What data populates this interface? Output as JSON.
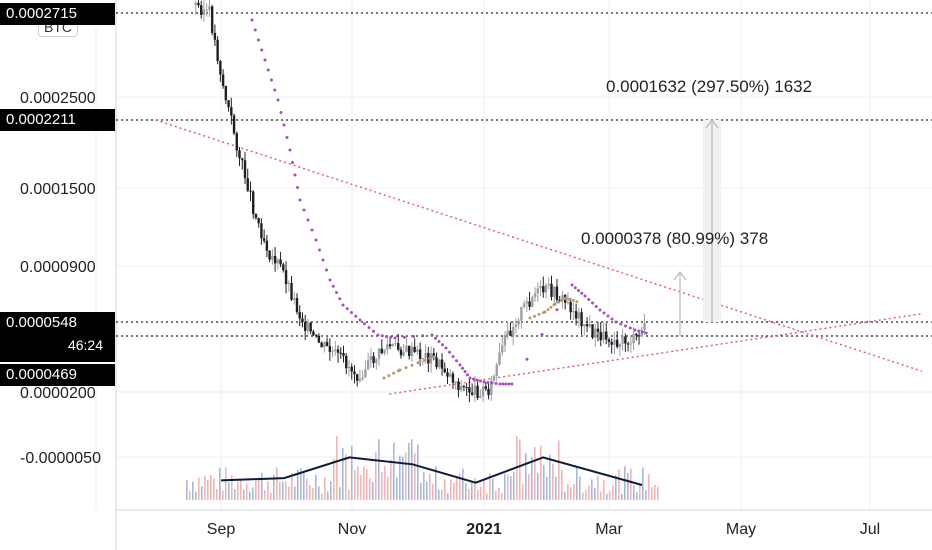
{
  "symbol": "BTC",
  "colors": {
    "up": "#9aa0a6",
    "down": "#1f1f1f",
    "sar_upper": "#a84cc4",
    "sar_lower": "#b89a6a",
    "trend": "#e5556a",
    "volume_line": "#0f1b3d",
    "vol_up": "#a8b8d8",
    "vol_down": "#f0b5b5",
    "target_arrow": "#b5b5b5"
  },
  "price_labels": {
    "top": "0.0002715",
    "resistance": "0.0002211",
    "current": "0.0000548",
    "countdown": "46:24",
    "support": "0.0000469"
  },
  "annotations": {
    "target_small": "0.0000378 (80.99%) 378",
    "target_large": "0.0001632 (297.50%) 1632"
  },
  "chart_data": {
    "type": "candlestick",
    "title": "",
    "ylabel": "",
    "xlabel": "",
    "y_ticks": [
      "0.0002500",
      "0.0001500",
      "0.0000900",
      "0.0000200",
      "-0.0000050"
    ],
    "x_ticks": [
      "Sep",
      "Nov",
      "2021",
      "Mar",
      "May",
      "Jul"
    ],
    "y_scale": "log-like",
    "grid": true,
    "price_path": [
      [
        "2020-08-20",
        0.00029
      ],
      [
        "2020-08-27",
        0.00027
      ],
      [
        "2020-09-03",
        0.00025
      ],
      [
        "2020-09-10",
        0.00018
      ],
      [
        "2020-09-17",
        0.00013
      ],
      [
        "2020-09-24",
        0.0001
      ],
      [
        "2020-10-01",
        8.5e-05
      ],
      [
        "2020-10-08",
        6e-05
      ],
      [
        "2020-10-15",
        4.5e-05
      ],
      [
        "2020-10-22",
        4e-05
      ],
      [
        "2020-10-29",
        3.5e-05
      ],
      [
        "2020-11-05",
        2.8e-05
      ],
      [
        "2020-11-12",
        3.5e-05
      ],
      [
        "2020-11-19",
        4.2e-05
      ],
      [
        "2020-11-26",
        4e-05
      ],
      [
        "2020-12-03",
        3.8e-05
      ],
      [
        "2020-12-10",
        3.6e-05
      ],
      [
        "2020-12-17",
        3e-05
      ],
      [
        "2020-12-24",
        2.2e-05
      ],
      [
        "2020-12-31",
        2e-05
      ],
      [
        "2021-01-07",
        2.2e-05
      ],
      [
        "2021-01-14",
        4.5e-05
      ],
      [
        "2021-01-21",
        6e-05
      ],
      [
        "2021-01-28",
        7.2e-05
      ],
      [
        "2021-02-04",
        7.5e-05
      ],
      [
        "2021-02-11",
        6.8e-05
      ],
      [
        "2021-02-18",
        5.8e-05
      ],
      [
        "2021-02-25",
        4.8e-05
      ],
      [
        "2021-03-04",
        4.6e-05
      ],
      [
        "2021-03-11",
        4.4e-05
      ],
      [
        "2021-03-18",
        4.5e-05
      ],
      [
        "2021-03-22",
        5.48e-05
      ]
    ],
    "volume_path": [
      [
        "2020-09-01",
        0.6
      ],
      [
        "2020-10-01",
        0.7
      ],
      [
        "2020-11-01",
        1.6
      ],
      [
        "2020-12-01",
        1.3
      ],
      [
        "2020-12-31",
        0.5
      ],
      [
        "2021-02-01",
        1.6
      ],
      [
        "2021-03-20",
        0.4
      ]
    ],
    "trendlines": [
      {
        "name": "",
        "from": [
          "2020-08-01",
          0.0002211
        ],
        "to": [
          "2021-07-31",
          3e-05
        ]
      },
      {
        "name": "",
        "from": [
          "2020-11-20",
          1.8e-05
        ],
        "to": [
          "2021-07-31",
          6e-05
        ]
      }
    ],
    "horizontal_levels": [
      0.0002715,
      0.0002211,
      5.48e-05,
      4.69e-05
    ]
  }
}
